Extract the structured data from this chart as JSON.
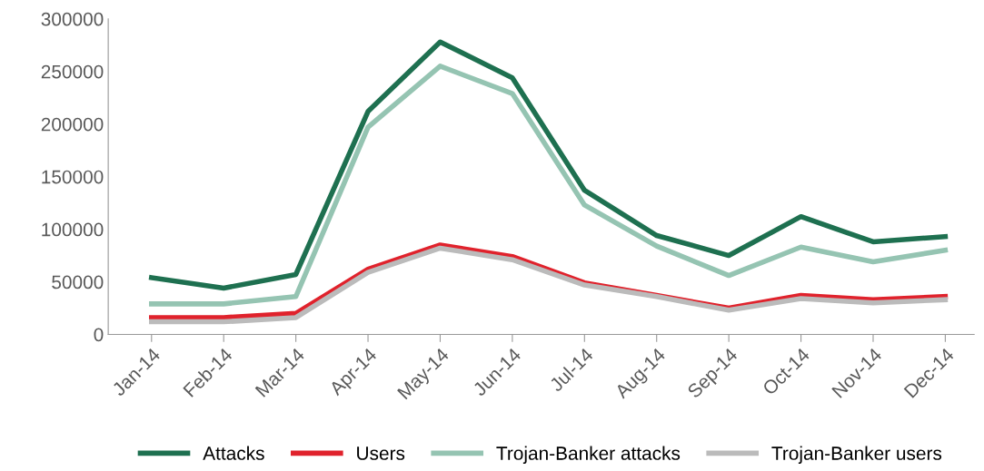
{
  "chart_data": {
    "type": "line",
    "categories": [
      "Jan-14",
      "Feb-14",
      "Mar-14",
      "Apr-14",
      "May-14",
      "Jun-14",
      "Jul-14",
      "Aug-14",
      "Sep-14",
      "Oct-14",
      "Nov-14",
      "Dec-14"
    ],
    "series": [
      {
        "name": "Attacks",
        "color": "#1e7050",
        "values": [
          54000,
          44000,
          57000,
          212000,
          278000,
          244000,
          137000,
          94000,
          75000,
          112000,
          88000,
          93000
        ]
      },
      {
        "name": "Users",
        "color": "#e0222c",
        "values": [
          16000,
          16000,
          20000,
          62000,
          85000,
          74000,
          49000,
          37000,
          25000,
          37000,
          33000,
          36000
        ]
      },
      {
        "name": "Trojan-Banker attacks",
        "color": "#95c4b2",
        "values": [
          29000,
          29000,
          36000,
          197000,
          255000,
          229000,
          123000,
          84000,
          56000,
          83000,
          69000,
          80000
        ]
      },
      {
        "name": "Trojan-Banker users",
        "color": "#bbbbbb",
        "values": [
          12000,
          12000,
          16000,
          59000,
          82000,
          71000,
          47000,
          36000,
          23000,
          34000,
          30000,
          33000
        ]
      }
    ],
    "ylim": [
      0,
      300000
    ],
    "yticks": [
      0,
      50000,
      100000,
      150000,
      200000,
      250000,
      300000
    ],
    "grid": false,
    "legend": "bottom",
    "marker": "none",
    "line_style": "solid"
  }
}
